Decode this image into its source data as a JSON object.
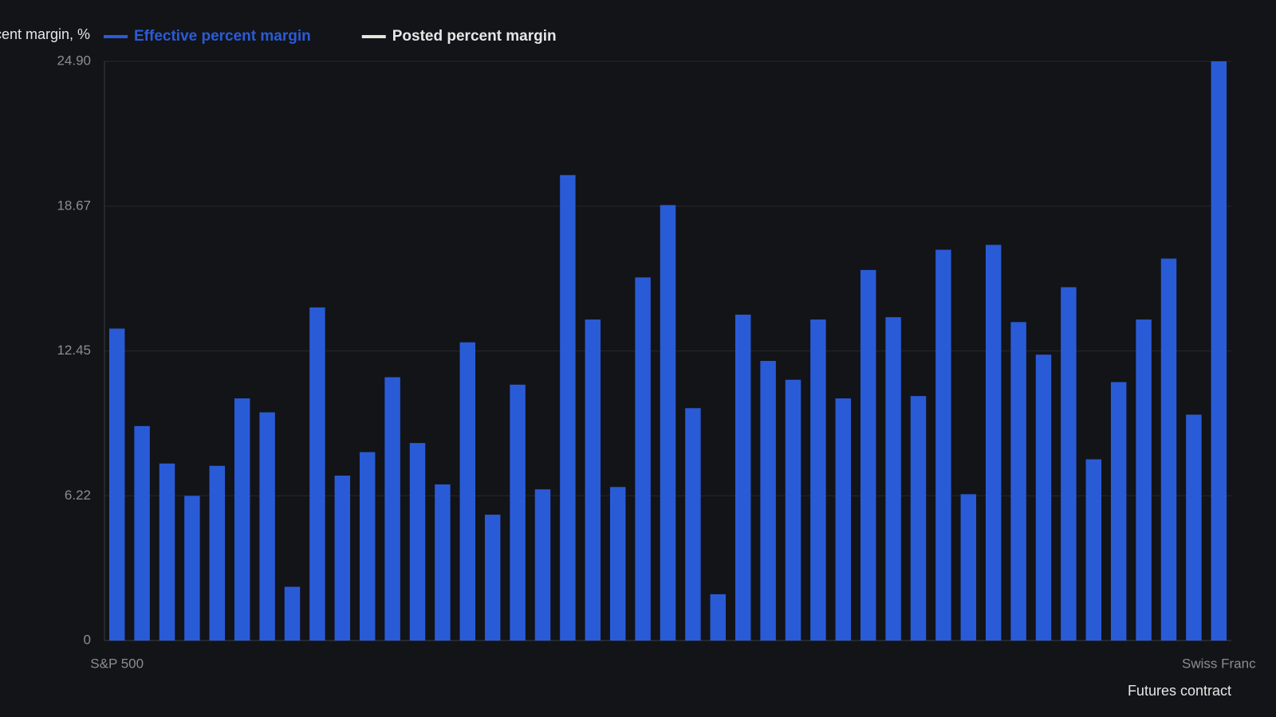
{
  "chart_data": {
    "type": "bar",
    "y_label": "Percent margin, %",
    "x_label": "Futures contract",
    "categories": [
      "S&P 500",
      null,
      null,
      null,
      null,
      null,
      null,
      null,
      null,
      null,
      null,
      null,
      null,
      null,
      null,
      null,
      null,
      null,
      null,
      null,
      null,
      null,
      null,
      null,
      null,
      null,
      null,
      null,
      null,
      null,
      null,
      null,
      null,
      null,
      null,
      null,
      null,
      null,
      null,
      null,
      null,
      null,
      null,
      null,
      "Swiss Franc"
    ],
    "series": [
      {
        "name": "Effective percent margin",
        "color": "#2a5bd7",
        "values": [
          13.41,
          9.22,
          7.61,
          6.22,
          7.51,
          10.41,
          9.81,
          2.31,
          14.32,
          7.09,
          8.1,
          11.32,
          8.49,
          6.71,
          12.82,
          5.41,
          11.0,
          6.5,
          20.01,
          13.8,
          6.6,
          15.61,
          18.72,
          9.99,
          1.99,
          14.01,
          12.02,
          11.21,
          13.8,
          10.41,
          15.93,
          13.9,
          10.51,
          16.8,
          6.29,
          17.01,
          13.69,
          12.29,
          15.19,
          7.79,
          11.11,
          13.8,
          16.42,
          9.71,
          24.9
        ]
      }
    ],
    "other_legend": [
      {
        "name": "Posted percent margin",
        "color": "#e6e4dc"
      }
    ],
    "ylim": [
      0,
      24.9
    ],
    "yticks": [
      0,
      6.22,
      12.45,
      18.67,
      {
        "value": 24.9,
        "label": "24.90"
      }
    ],
    "grid": true
  }
}
